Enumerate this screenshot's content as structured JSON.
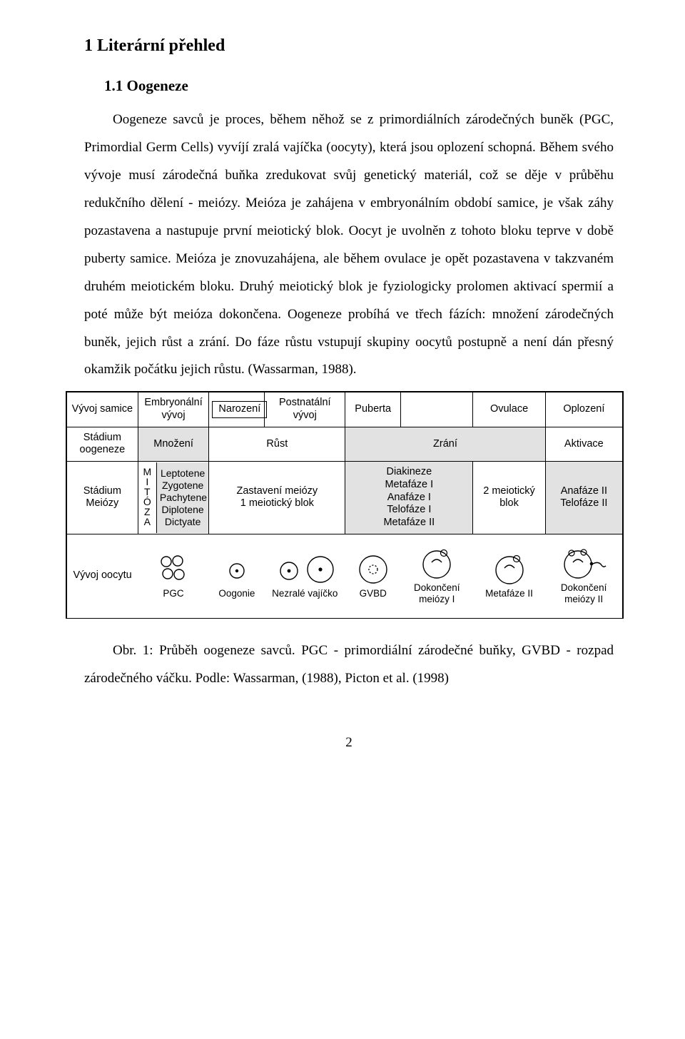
{
  "heading1": "1  Literární přehled",
  "heading2": "1.1  Oogeneze",
  "paragraph": "Oogeneze savců je proces, během něhož se z  primordiálních zárodečných buněk (PGC, Primordial Germ Cells) vyvíjí zralá vajíčka (oocyty), která jsou oplození schopná. Během svého vývoje musí zárodečná buňka zredukovat svůj genetický materiál, což se děje v průběhu redukčního dělení - meiózy. Meióza je zahájena v embryonálním období samice, je však záhy pozastavena a nastupuje první meiotický blok. Oocyt je uvolněn z tohoto bloku teprve v době puberty samice. Meióza je znovuzahájena, ale během ovulace je opět pozastavena v takzvaném druhém meiotickém bloku. Druhý meiotický blok je fyziologicky prolomen aktivací spermií a poté může být meióza dokončena. Oogeneze probíhá ve třech fázích: množení zárodečných buněk, jejich růst a zrání. Do fáze růstu vstupují skupiny oocytů postupně a není dán přesný okamžik počátku jejich růstu. (Wassarman, 1988).",
  "caption": "Obr. 1: Průběh oogeneze savců. PGC - primordiální zárodečné buňky, GVBD - rozpad zárodečného váčku. Podle: Wassarman, (1988), Picton et al. (1998)",
  "pagenum": "2",
  "diagram": {
    "colors": {
      "gray": "#e2e2e2",
      "border": "#000000",
      "bg": "#ffffff"
    },
    "font": {
      "family": "Arial",
      "size_pt": 11
    },
    "row1": {
      "label": "Vývoj samice",
      "cells": [
        "Embryonální\nvývoj",
        "Narození",
        "Postnatální\nvývoj",
        "Puberta",
        "",
        "Ovulace",
        "Oplození"
      ],
      "boxed_index": 1
    },
    "row2": {
      "label": "Stádium\noogeneze",
      "cells": [
        "Množení",
        "Růst",
        "Zrání",
        "Aktivace"
      ],
      "spans": [
        1,
        2,
        3,
        1
      ]
    },
    "row3": {
      "label": "Stádium\nMeiózy",
      "mitoza": "MITÓZA",
      "stages": [
        "Leptotene",
        "Zygotene",
        "Pachytene",
        "Diplotene",
        "Dictyate"
      ],
      "arrest": "Zastavení meiózy\n1 meiotický blok",
      "diakin": [
        "Diakineze",
        "Metafáze I",
        "Anafáze I",
        "Telofáze I",
        "Metafáze II"
      ],
      "block2": "2 meiotický\nblok",
      "anaII": "Anafáze II\nTelofáze II"
    },
    "row4": {
      "label": "Vývoj oocytu",
      "items": [
        {
          "key": "pgc",
          "label": "PGC"
        },
        {
          "key": "oogonie",
          "label": "Oogonie"
        },
        {
          "key": "nezrale",
          "label": "Nezralé vajíčko"
        },
        {
          "key": "gvbd",
          "label": "GVBD"
        },
        {
          "key": "dok1",
          "label": "Dokončení\nmeiózy I"
        },
        {
          "key": "meta2",
          "label": "Metafáze II"
        },
        {
          "key": "dok2",
          "label": "Dokončení\nmeiózy II"
        }
      ]
    }
  }
}
